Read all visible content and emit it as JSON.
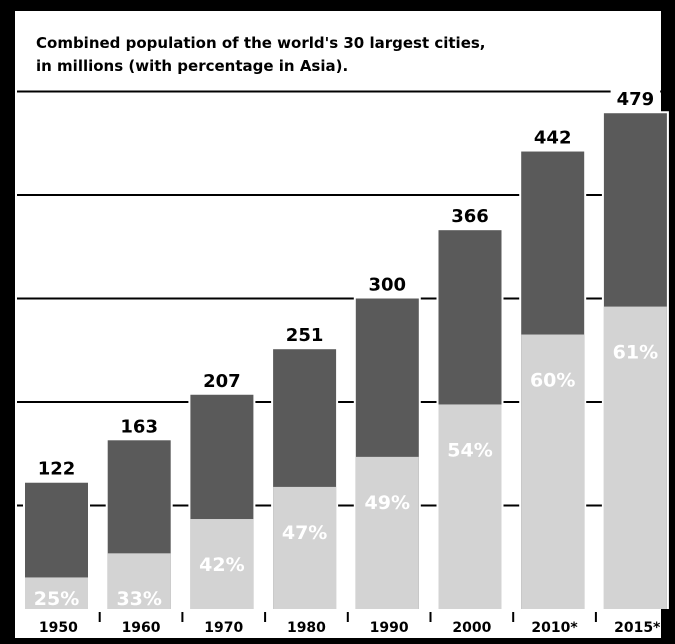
{
  "chart_data": {
    "type": "bar",
    "stacked": true,
    "title": "Combined population of the world's 30 largest cities,",
    "subtitle": "in millions (with percentage in Asia).",
    "categories": [
      "1950",
      "1960",
      "1970",
      "1980",
      "1990",
      "2000",
      "2010*",
      "2015*"
    ],
    "totals": [
      122,
      163,
      207,
      251,
      300,
      366,
      442,
      479
    ],
    "asia_percent_labels": [
      "25%",
      "33%",
      "42%",
      "47%",
      "49%",
      "54%",
      "60%",
      "61%"
    ],
    "asia_share": [
      0.25,
      0.33,
      0.42,
      0.47,
      0.49,
      0.54,
      0.6,
      0.61
    ],
    "ylim": [
      0,
      500
    ],
    "gridlines": [
      100,
      200,
      300,
      400,
      500
    ],
    "grid": true,
    "colors": {
      "total": "#5a5a5a",
      "asia": "#d3d3d3",
      "percent_text": "#ffffff",
      "frame": "#000000",
      "gridline": "#000000"
    }
  }
}
